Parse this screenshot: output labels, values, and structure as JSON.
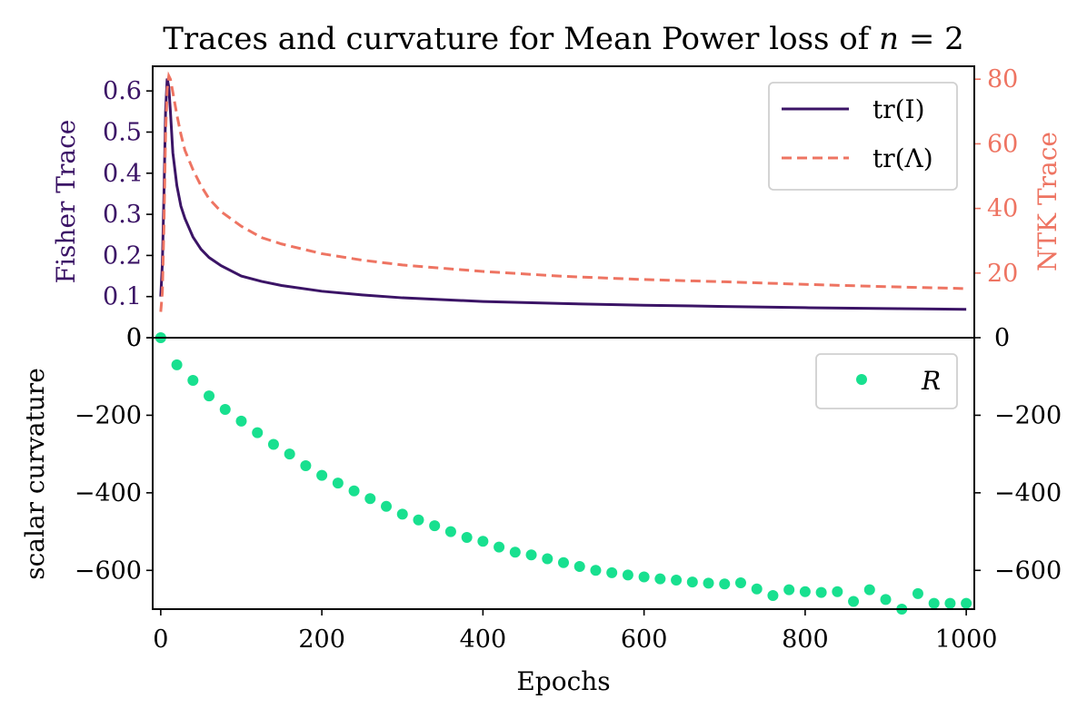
{
  "chart_data": [
    {
      "type": "line",
      "title": "Traces and curvature for Mean Power loss of n = 2",
      "title_parts": {
        "prefix": "Traces and curvature for Mean Power loss of ",
        "var": "n",
        "eq": " = 2"
      },
      "xlabel": "",
      "xlim": [
        -10,
        1010
      ],
      "ylabel": "Fisher Trace",
      "ylim": [
        0,
        0.66
      ],
      "ylabel_right": "NTK Trace",
      "ylim_right": [
        0,
        84
      ],
      "yticks": [
        "0",
        "0.1",
        "0.2",
        "0.3",
        "0.4",
        "0.5",
        "0.6"
      ],
      "yticks_right": [
        "20",
        "40",
        "60",
        "80"
      ],
      "legend_position": "top-right",
      "colors": {
        "fisher": "#3b1466",
        "ntk": "#ee7462"
      },
      "series": [
        {
          "name": "tr(I)",
          "axis": "left",
          "style": "solid",
          "x": [
            0,
            2,
            4,
            6,
            8,
            10,
            12,
            15,
            20,
            25,
            30,
            40,
            50,
            60,
            75,
            100,
            125,
            150,
            200,
            250,
            300,
            400,
            500,
            600,
            700,
            800,
            900,
            1000
          ],
          "y": [
            0.1,
            0.18,
            0.35,
            0.55,
            0.63,
            0.61,
            0.55,
            0.45,
            0.37,
            0.32,
            0.29,
            0.245,
            0.215,
            0.195,
            0.175,
            0.15,
            0.137,
            0.127,
            0.113,
            0.104,
            0.097,
            0.088,
            0.083,
            0.079,
            0.076,
            0.073,
            0.071,
            0.069
          ]
        },
        {
          "name": "tr(Λ)",
          "axis": "right",
          "style": "dashed",
          "x": [
            0,
            2,
            4,
            6,
            8,
            10,
            12,
            15,
            20,
            25,
            30,
            40,
            50,
            60,
            75,
            100,
            125,
            150,
            200,
            250,
            300,
            400,
            500,
            600,
            700,
            800,
            900,
            1000
          ],
          "y": [
            8,
            14,
            35,
            63,
            77,
            81,
            80,
            76,
            69,
            63,
            58,
            52,
            47,
            43,
            39,
            34.5,
            31,
            29,
            26,
            24,
            22.5,
            20.5,
            19,
            18,
            17.3,
            16.5,
            15.8,
            15.2
          ]
        }
      ]
    },
    {
      "type": "scatter",
      "xlabel": "Epochs",
      "xlim": [
        -10,
        1010
      ],
      "xticks": [
        0,
        200,
        400,
        600,
        800,
        1000
      ],
      "ylabel": "scalar curvature",
      "ylim": [
        -700,
        0
      ],
      "yticks": [
        "0",
        "−200",
        "−400",
        "−600"
      ],
      "yticks_right": [
        "0",
        "−200",
        "−400",
        "−600"
      ],
      "legend_position": "top-right",
      "color": "#18e08f",
      "series": [
        {
          "name": "R",
          "x": [
            0,
            20,
            40,
            60,
            80,
            100,
            120,
            140,
            160,
            180,
            200,
            220,
            240,
            260,
            280,
            300,
            320,
            340,
            360,
            380,
            400,
            420,
            440,
            460,
            480,
            500,
            520,
            540,
            560,
            580,
            600,
            620,
            640,
            660,
            680,
            700,
            720,
            740,
            760,
            780,
            800,
            820,
            840,
            860,
            880,
            900,
            920,
            940,
            960,
            980,
            1000
          ],
          "y": [
            0,
            -70,
            -110,
            -150,
            -185,
            -215,
            -245,
            -275,
            -300,
            -330,
            -355,
            -375,
            -395,
            -415,
            -435,
            -455,
            -470,
            -485,
            -500,
            -515,
            -525,
            -540,
            -553,
            -560,
            -570,
            -580,
            -590,
            -600,
            -606,
            -612,
            -617,
            -622,
            -625,
            -630,
            -633,
            -635,
            -632,
            -648,
            -665,
            -650,
            -655,
            -657,
            -655,
            -680,
            -650,
            -675,
            -700,
            -660,
            -685,
            -685,
            -685
          ]
        }
      ]
    }
  ]
}
